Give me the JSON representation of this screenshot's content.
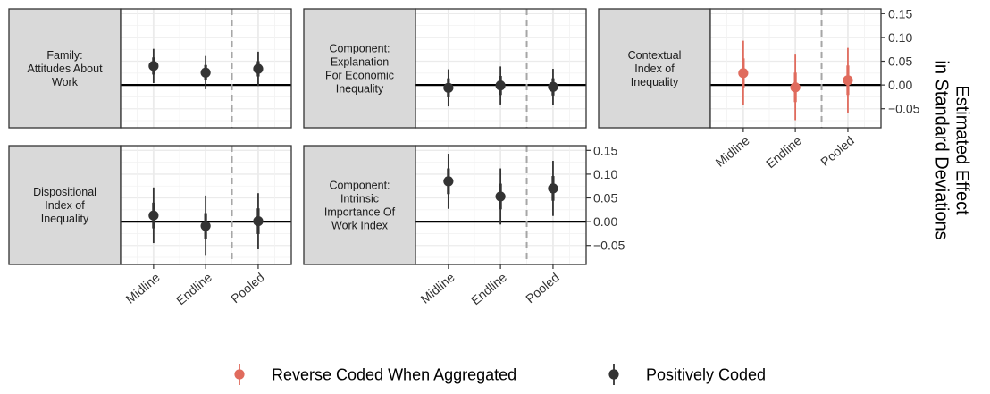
{
  "chart_data": {
    "type": "pointrange",
    "ylabel": "Estimated Effect\nin Standard Deviations",
    "categories": [
      "Midline",
      "Endline",
      "Pooled"
    ],
    "ylim": [
      -0.09,
      0.16
    ],
    "yticks": [
      -0.05,
      0.0,
      0.05,
      0.1,
      0.15
    ],
    "ytick_labels": [
      "−0.05",
      "0.00",
      "0.05",
      "0.10",
      "0.15"
    ],
    "reference_line": 0,
    "grid": true,
    "legend": {
      "position": "bottom",
      "entries": [
        {
          "label": "Reverse Coded When Aggregated",
          "color": "#e06b5d"
        },
        {
          "label": "Positively Coded",
          "color": "#333333"
        }
      ]
    },
    "panels": [
      {
        "label": "Family:\nAttitudes About\nWork",
        "series": "Positively Coded",
        "points": [
          {
            "x": "Midline",
            "estimate": 0.04,
            "ci90": [
              0.022,
              0.058
            ],
            "ci95": [
              0.004,
              0.076
            ]
          },
          {
            "x": "Endline",
            "estimate": 0.026,
            "ci90": [
              0.01,
              0.042
            ],
            "ci95": [
              -0.009,
              0.061
            ]
          },
          {
            "x": "Pooled",
            "estimate": 0.034,
            "ci90": [
              0.018,
              0.05
            ],
            "ci95": [
              -0.002,
              0.07
            ]
          }
        ]
      },
      {
        "label": "Component:\nExplanation\nFor Economic\nInequality",
        "series": "Positively Coded",
        "points": [
          {
            "x": "Midline",
            "estimate": -0.006,
            "ci90": [
              -0.026,
              0.014
            ],
            "ci95": [
              -0.045,
              0.033
            ]
          },
          {
            "x": "Endline",
            "estimate": -0.001,
            "ci90": [
              -0.021,
              0.019
            ],
            "ci95": [
              -0.041,
              0.039
            ]
          },
          {
            "x": "Pooled",
            "estimate": -0.004,
            "ci90": [
              -0.022,
              0.014
            ],
            "ci95": [
              -0.042,
              0.034
            ]
          }
        ]
      },
      {
        "label": "Contextual\nIndex of\nInequality",
        "series": "Reverse Coded When Aggregated",
        "points": [
          {
            "x": "Midline",
            "estimate": 0.025,
            "ci90": [
              -0.006,
              0.056
            ],
            "ci95": [
              -0.043,
              0.093
            ]
          },
          {
            "x": "Endline",
            "estimate": -0.005,
            "ci90": [
              -0.036,
              0.026
            ],
            "ci95": [
              -0.074,
              0.064
            ]
          },
          {
            "x": "Pooled",
            "estimate": 0.01,
            "ci90": [
              -0.021,
              0.041
            ],
            "ci95": [
              -0.058,
              0.078
            ]
          }
        ]
      },
      {
        "label": "Dispositional\nIndex of\nInequality",
        "series": "Positively Coded",
        "points": [
          {
            "x": "Midline",
            "estimate": 0.013,
            "ci90": [
              -0.014,
              0.04
            ],
            "ci95": [
              -0.045,
              0.072
            ]
          },
          {
            "x": "Endline",
            "estimate": -0.009,
            "ci90": [
              -0.036,
              0.018
            ],
            "ci95": [
              -0.07,
              0.055
            ]
          },
          {
            "x": "Pooled",
            "estimate": 0.001,
            "ci90": [
              -0.026,
              0.028
            ],
            "ci95": [
              -0.058,
              0.06
            ]
          }
        ]
      },
      {
        "label": "Component:\nIntrinsic\nImportance Of\nWork Index",
        "series": "Positively Coded",
        "points": [
          {
            "x": "Midline",
            "estimate": 0.085,
            "ci90": [
              0.058,
              0.112
            ],
            "ci95": [
              0.027,
              0.143
            ]
          },
          {
            "x": "Endline",
            "estimate": 0.053,
            "ci90": [
              0.026,
              0.08
            ],
            "ci95": [
              -0.006,
              0.112
            ]
          },
          {
            "x": "Pooled",
            "estimate": 0.07,
            "ci90": [
              0.044,
              0.096
            ],
            "ci95": [
              0.012,
              0.128
            ]
          }
        ]
      }
    ]
  }
}
